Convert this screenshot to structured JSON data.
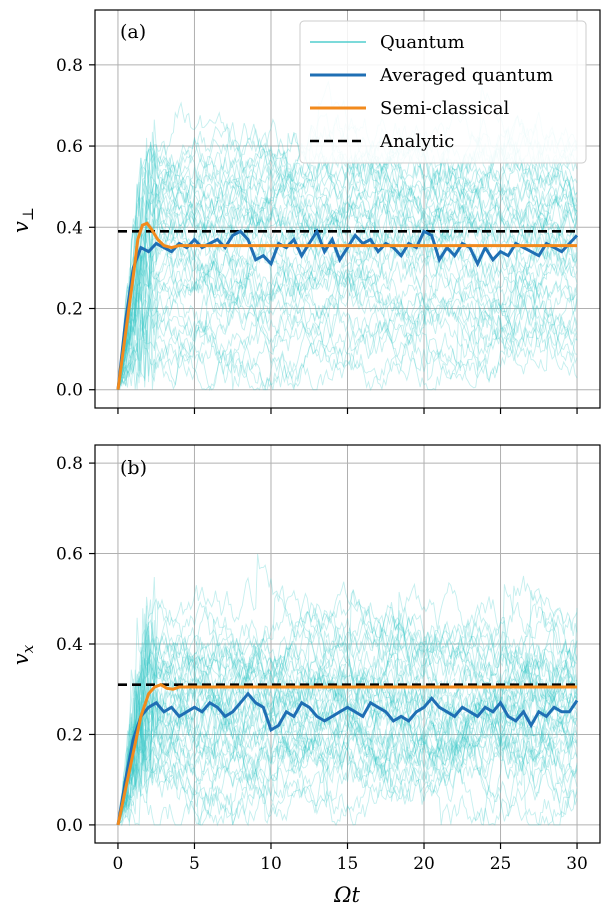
{
  "chart_data": [
    {
      "type": "line",
      "panel_label": "(a)",
      "ylabel": "v⊥",
      "xlabel": "",
      "xlim": [
        -1.5,
        31.5
      ],
      "ylim": [
        -0.045,
        0.935
      ],
      "xticks": [
        0,
        5,
        10,
        15,
        20,
        25,
        30
      ],
      "yticks": [
        0.0,
        0.2,
        0.4,
        0.6,
        0.8
      ],
      "tick_labels_y": [
        "0.0",
        "0.2",
        "0.4",
        "0.6",
        "0.8"
      ],
      "tick_labels_x": [],
      "grid": true,
      "legend_placement": "top-right",
      "quantum_trajectories": {
        "count": 45,
        "center": 0.33,
        "spread": 0.28,
        "max": 0.9,
        "note_visible": false
      },
      "series": [
        {
          "name": "Averaged quantum",
          "x": [
            0,
            0.5,
            1,
            1.5,
            2,
            2.5,
            3,
            3.5,
            4,
            4.5,
            5,
            5.5,
            6,
            6.5,
            7,
            7.5,
            8,
            8.5,
            9,
            9.5,
            10,
            10.5,
            11,
            11.5,
            12,
            12.5,
            13,
            13.5,
            14,
            14.5,
            15,
            15.5,
            16,
            16.5,
            17,
            17.5,
            18,
            18.5,
            19,
            19.5,
            20,
            20.5,
            21,
            21.5,
            22,
            22.5,
            23,
            23.5,
            24,
            24.5,
            25,
            25.5,
            26,
            26.5,
            27,
            27.5,
            28,
            28.5,
            29,
            29.5,
            30
          ],
          "values": [
            0,
            0.17,
            0.3,
            0.35,
            0.34,
            0.36,
            0.35,
            0.34,
            0.36,
            0.35,
            0.37,
            0.35,
            0.36,
            0.37,
            0.35,
            0.38,
            0.39,
            0.37,
            0.32,
            0.33,
            0.31,
            0.36,
            0.35,
            0.37,
            0.33,
            0.36,
            0.39,
            0.34,
            0.37,
            0.32,
            0.35,
            0.38,
            0.36,
            0.37,
            0.34,
            0.36,
            0.35,
            0.33,
            0.36,
            0.35,
            0.39,
            0.38,
            0.32,
            0.35,
            0.33,
            0.36,
            0.35,
            0.31,
            0.35,
            0.32,
            0.34,
            0.33,
            0.36,
            0.35,
            0.34,
            0.33,
            0.36,
            0.35,
            0.34,
            0.36,
            0.38
          ]
        },
        {
          "name": "Semi-classical",
          "x": [
            0,
            0.5,
            1,
            1.3,
            1.6,
            1.9,
            2.2,
            2.6,
            3,
            3.5,
            4,
            5,
            10,
            20,
            30
          ],
          "values": [
            0,
            0.14,
            0.28,
            0.37,
            0.405,
            0.41,
            0.395,
            0.37,
            0.355,
            0.35,
            0.355,
            0.355,
            0.355,
            0.355,
            0.355
          ]
        },
        {
          "name": "Analytic",
          "x": [
            0,
            30
          ],
          "values": [
            0.39,
            0.39
          ]
        }
      ],
      "legend": [
        {
          "label": "Quantum",
          "style": "thin-cyan"
        },
        {
          "label": "Averaged quantum",
          "style": "blue"
        },
        {
          "label": "Semi-classical",
          "style": "orange"
        },
        {
          "label": "Analytic",
          "style": "dashed-black"
        }
      ]
    },
    {
      "type": "line",
      "panel_label": "(b)",
      "ylabel": "vx",
      "xlabel": "Ωt",
      "xlim": [
        -1.5,
        31.5
      ],
      "ylim": [
        -0.04,
        0.84
      ],
      "xticks": [
        0,
        5,
        10,
        15,
        20,
        25,
        30
      ],
      "yticks": [
        0.0,
        0.2,
        0.4,
        0.6,
        0.8
      ],
      "tick_labels_y": [
        "0.0",
        "0.2",
        "0.4",
        "0.6",
        "0.8"
      ],
      "tick_labels_x": [
        "0",
        "5",
        "10",
        "15",
        "20",
        "25",
        "30"
      ],
      "grid": true,
      "legend_placement": "none",
      "quantum_trajectories": {
        "count": 45,
        "center": 0.25,
        "spread": 0.19,
        "max": 0.8
      },
      "series": [
        {
          "name": "Averaged quantum",
          "x": [
            0,
            0.5,
            1,
            1.5,
            2,
            2.5,
            3,
            3.5,
            4,
            4.5,
            5,
            5.5,
            6,
            6.5,
            7,
            7.5,
            8,
            8.5,
            9,
            9.5,
            10,
            10.5,
            11,
            11.5,
            12,
            12.5,
            13,
            13.5,
            14,
            14.5,
            15,
            15.5,
            16,
            16.5,
            17,
            17.5,
            18,
            18.5,
            19,
            19.5,
            20,
            20.5,
            21,
            21.5,
            22,
            22.5,
            23,
            23.5,
            24,
            24.5,
            25,
            25.5,
            26,
            26.5,
            27,
            27.5,
            28,
            28.5,
            29,
            29.5,
            30
          ],
          "values": [
            0,
            0.1,
            0.19,
            0.24,
            0.26,
            0.27,
            0.25,
            0.26,
            0.24,
            0.25,
            0.26,
            0.25,
            0.27,
            0.26,
            0.24,
            0.25,
            0.27,
            0.29,
            0.27,
            0.26,
            0.21,
            0.22,
            0.25,
            0.24,
            0.27,
            0.26,
            0.24,
            0.23,
            0.24,
            0.25,
            0.26,
            0.25,
            0.24,
            0.27,
            0.26,
            0.25,
            0.23,
            0.24,
            0.23,
            0.25,
            0.26,
            0.28,
            0.26,
            0.25,
            0.24,
            0.26,
            0.25,
            0.24,
            0.26,
            0.25,
            0.27,
            0.24,
            0.23,
            0.25,
            0.22,
            0.25,
            0.24,
            0.26,
            0.25,
            0.25,
            0.275
          ]
        },
        {
          "name": "Semi-classical",
          "x": [
            0,
            0.5,
            1,
            1.5,
            2,
            2.4,
            2.8,
            3.2,
            3.6,
            4,
            5,
            10,
            20,
            30
          ],
          "values": [
            0,
            0.08,
            0.16,
            0.24,
            0.29,
            0.305,
            0.31,
            0.302,
            0.3,
            0.305,
            0.305,
            0.305,
            0.305,
            0.305
          ]
        },
        {
          "name": "Analytic",
          "x": [
            0,
            30
          ],
          "values": [
            0.31,
            0.31
          ]
        }
      ]
    }
  ],
  "colors": {
    "quantum": "#2ec4c4",
    "averaged": "#1f6fb4",
    "semiclassical": "#f28a1c",
    "analytic": "#000000"
  }
}
